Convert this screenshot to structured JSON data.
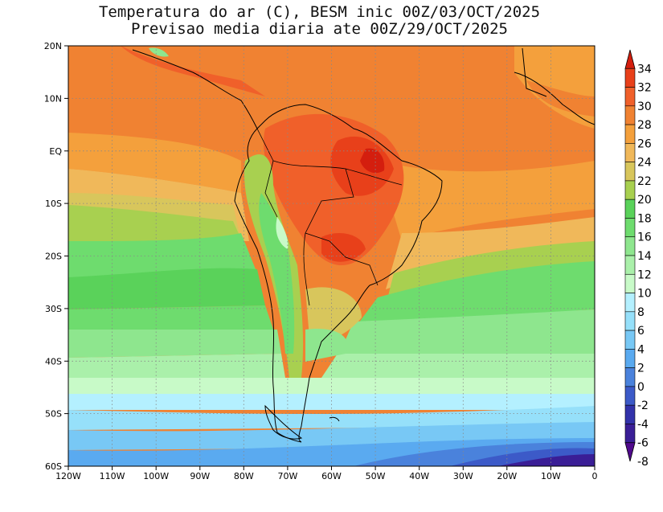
{
  "title_line1": "Temperatura do ar (C), BESM inic 00Z/03/OCT/2025",
  "title_line2": "Previsao media diaria ate 00Z/29/OCT/2025",
  "map": {
    "lon_ticks": [
      "120W",
      "110W",
      "100W",
      "90W",
      "80W",
      "70W",
      "60W",
      "50W",
      "40W",
      "30W",
      "20W",
      "10W",
      "0"
    ],
    "lat_ticks": [
      "20N",
      "10N",
      "EQ",
      "10S",
      "20S",
      "30S",
      "40S",
      "50S",
      "60S"
    ]
  },
  "colorbar": {
    "labels": [
      "34",
      "32",
      "30",
      "28",
      "26",
      "24",
      "22",
      "20",
      "18",
      "16",
      "14",
      "12",
      "10",
      "8",
      "6",
      "4",
      "2",
      "0",
      "-2",
      "-4",
      "-6",
      "-8"
    ],
    "colors": [
      "#d41e0e",
      "#e8401a",
      "#f0602a",
      "#f08232",
      "#f4a03c",
      "#f0b85a",
      "#d8c65c",
      "#a8d050",
      "#5ad25a",
      "#6edc6e",
      "#8ee68e",
      "#aaf0aa",
      "#c8fac8",
      "#b4f0ff",
      "#96e0fa",
      "#78c8f5",
      "#5aaaf0",
      "#4a82dc",
      "#3c5ac8",
      "#3232aa",
      "#3a1e96",
      "#500a8c"
    ]
  }
}
